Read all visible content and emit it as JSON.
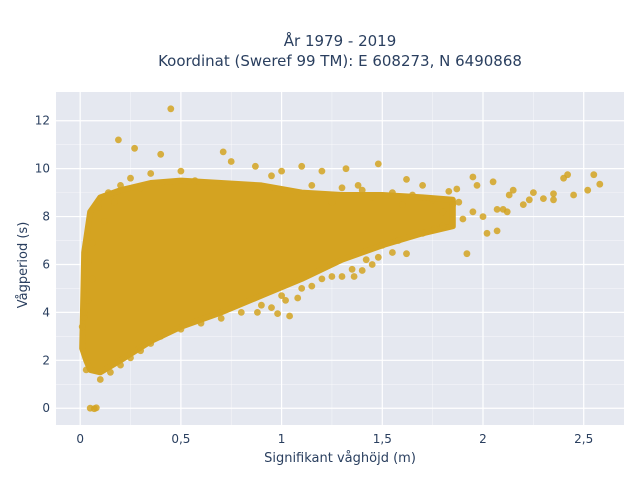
{
  "chart_data": {
    "type": "scatter",
    "title_lines": [
      "År 1979 - 2019",
      "Koordinat (Sweref 99 TM): E 608273, N 6490868"
    ],
    "xlabel": "Signifikant våghöjd (m)",
    "ylabel": "Vågperiod (s)",
    "xlim": [
      -0.12,
      2.7
    ],
    "ylim": [
      -0.7,
      13.2
    ],
    "xticks": [
      0,
      0.5,
      1,
      1.5,
      2,
      2.5
    ],
    "xtick_labels": [
      "0",
      "0,5",
      "1",
      "1,5",
      "2",
      "2,5"
    ],
    "yticks": [
      0,
      2,
      4,
      6,
      8,
      10,
      12
    ],
    "ytick_labels": [
      "0",
      "2",
      "4",
      "6",
      "8",
      "10",
      "12"
    ],
    "grid": true,
    "marker_color": "#d4a321",
    "background_color": "#e5e8f0",
    "gridline_color": "#ffffff",
    "text_color": "#2a3f5f",
    "points": [
      [
        0.45,
        12.5
      ],
      [
        0.19,
        11.2
      ],
      [
        0.27,
        10.85
      ],
      [
        0.4,
        10.6
      ],
      [
        0.71,
        10.7
      ],
      [
        2.58,
        9.35
      ],
      [
        2.55,
        9.75
      ],
      [
        2.52,
        9.1
      ],
      [
        2.42,
        9.75
      ],
      [
        2.4,
        9.6
      ],
      [
        2.3,
        8.75
      ],
      [
        2.23,
        8.7
      ],
      [
        2.12,
        8.2
      ],
      [
        2.07,
        8.3
      ],
      [
        2.13,
        8.9
      ],
      [
        2.05,
        9.45
      ],
      [
        1.97,
        9.3
      ],
      [
        1.95,
        9.65
      ],
      [
        1.88,
        8.6
      ],
      [
        1.83,
        9.05
      ],
      [
        1.8,
        8.2
      ],
      [
        2.07,
        7.4
      ],
      [
        2.02,
        7.3
      ],
      [
        1.92,
        6.45
      ],
      [
        1.76,
        7.5
      ],
      [
        1.62,
        6.45
      ],
      [
        1.68,
        7.3
      ],
      [
        1.45,
        6.0
      ],
      [
        1.4,
        5.75
      ],
      [
        1.3,
        5.5
      ],
      [
        1.36,
        5.5
      ],
      [
        1.48,
        6.3
      ],
      [
        1.55,
        6.5
      ],
      [
        1.2,
        5.4
      ],
      [
        1.15,
        5.1
      ],
      [
        1.08,
        4.6
      ],
      [
        1.02,
        4.5
      ],
      [
        1.04,
        3.85
      ],
      [
        0.95,
        4.2
      ],
      [
        0.88,
        4.0
      ],
      [
        0.98,
        3.95
      ],
      [
        0.05,
        0.0
      ],
      [
        0.07,
        -0.02
      ],
      [
        0.08,
        0.02
      ],
      [
        0.03,
        1.6
      ],
      [
        0.02,
        3.8
      ],
      [
        0.04,
        4.5
      ],
      [
        0.02,
        4.0
      ],
      [
        0.06,
        5.4
      ],
      [
        0.01,
        3.4
      ],
      [
        0.14,
        9.0
      ],
      [
        0.2,
        9.3
      ],
      [
        0.25,
        9.6
      ],
      [
        0.35,
        9.8
      ],
      [
        0.5,
        9.9
      ],
      [
        0.75,
        10.3
      ],
      [
        0.87,
        10.1
      ],
      [
        1.1,
        10.1
      ],
      [
        1.2,
        9.9
      ],
      [
        1.32,
        10.0
      ],
      [
        1.48,
        10.2
      ],
      [
        1.38,
        9.3
      ],
      [
        1.62,
        9.55
      ],
      [
        1.7,
        9.3
      ],
      [
        1.87,
        9.15
      ],
      [
        0.57,
        9.5
      ],
      [
        0.95,
        9.7
      ],
      [
        1.0,
        9.9
      ],
      [
        0.3,
        9.2
      ],
      [
        0.17,
        8.6
      ],
      [
        0.09,
        8.4
      ],
      [
        0.06,
        6.9
      ],
      [
        0.04,
        6.1
      ],
      [
        0.12,
        7.8
      ],
      [
        0.1,
        1.2
      ],
      [
        0.15,
        1.5
      ],
      [
        0.2,
        1.8
      ],
      [
        0.25,
        2.1
      ],
      [
        0.3,
        2.4
      ],
      [
        0.35,
        2.7
      ],
      [
        0.4,
        3.0
      ],
      [
        0.5,
        3.3
      ],
      [
        0.6,
        3.55
      ],
      [
        0.7,
        3.75
      ],
      [
        0.8,
        4.0
      ],
      [
        0.9,
        4.3
      ],
      [
        1.0,
        4.7
      ],
      [
        1.1,
        5.0
      ],
      [
        1.25,
        5.5
      ],
      [
        1.35,
        5.8
      ],
      [
        1.42,
        6.2
      ],
      [
        1.5,
        6.8
      ],
      [
        1.58,
        7.0
      ],
      [
        1.7,
        7.3
      ],
      [
        1.8,
        7.6
      ],
      [
        1.9,
        7.9
      ],
      [
        2.0,
        8.0
      ],
      [
        2.1,
        8.3
      ],
      [
        2.2,
        8.5
      ],
      [
        2.35,
        8.7
      ],
      [
        2.45,
        8.9
      ],
      [
        1.65,
        8.9
      ],
      [
        1.75,
        8.7
      ],
      [
        1.85,
        8.5
      ],
      [
        1.95,
        8.2
      ],
      [
        2.15,
        9.1
      ],
      [
        2.25,
        9.0
      ],
      [
        2.35,
        8.95
      ],
      [
        1.6,
        8.5
      ],
      [
        1.55,
        9.0
      ],
      [
        1.45,
        8.8
      ],
      [
        1.4,
        9.1
      ],
      [
        1.3,
        9.2
      ],
      [
        1.25,
        8.6
      ],
      [
        1.15,
        9.3
      ]
    ],
    "dense_band": {
      "upper": [
        [
          0.02,
          6.5
        ],
        [
          0.05,
          8.2
        ],
        [
          0.1,
          8.8
        ],
        [
          0.2,
          9.1
        ],
        [
          0.35,
          9.4
        ],
        [
          0.5,
          9.5
        ],
        [
          0.7,
          9.4
        ],
        [
          0.9,
          9.3
        ],
        [
          1.1,
          9.0
        ],
        [
          1.3,
          8.9
        ],
        [
          1.5,
          8.9
        ],
        [
          1.7,
          8.8
        ],
        [
          1.85,
          8.7
        ]
      ],
      "lower": [
        [
          1.85,
          7.6
        ],
        [
          1.7,
          7.3
        ],
        [
          1.5,
          6.8
        ],
        [
          1.3,
          6.2
        ],
        [
          1.1,
          5.4
        ],
        [
          0.9,
          4.7
        ],
        [
          0.7,
          4.0
        ],
        [
          0.5,
          3.4
        ],
        [
          0.35,
          2.8
        ],
        [
          0.2,
          2.0
        ],
        [
          0.1,
          1.5
        ],
        [
          0.05,
          1.6
        ],
        [
          0.03,
          2.0
        ],
        [
          0.01,
          2.5
        ]
      ]
    }
  }
}
